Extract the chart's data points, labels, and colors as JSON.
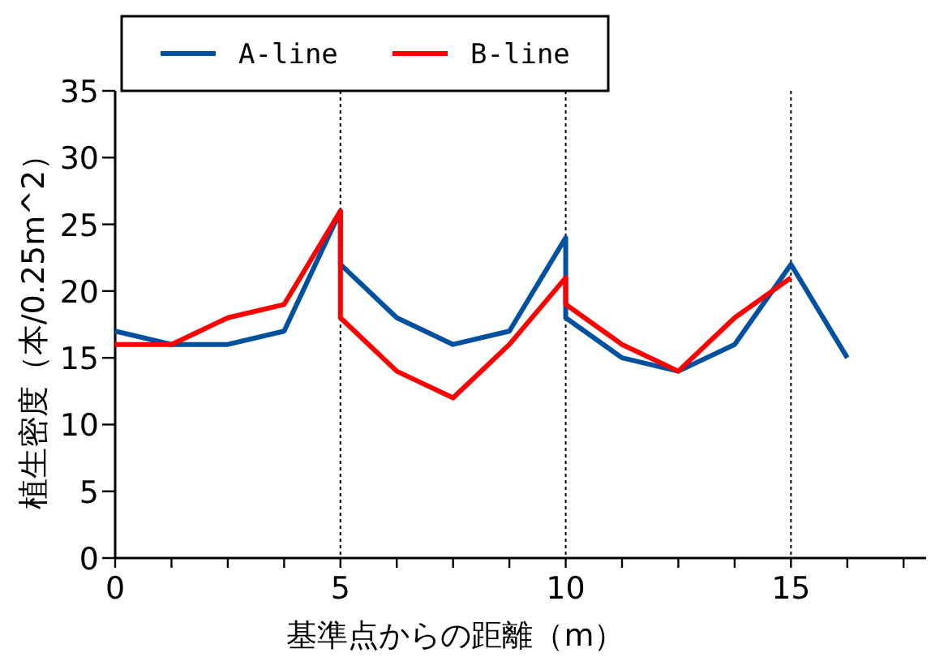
{
  "chart_data": {
    "type": "line",
    "xlabel": "基準点からの距離（m）",
    "ylabel": "植生密度（本/0.25m^2）",
    "xlim": [
      0,
      18
    ],
    "ylim": [
      0,
      35
    ],
    "xticks": [
      0,
      {
        "value": 1.25,
        "label": null
      },
      {
        "value": 2.5,
        "label": null
      },
      {
        "value": 3.75,
        "label": null
      },
      5,
      {
        "value": 6.25,
        "label": null
      },
      {
        "value": 7.5,
        "label": null
      },
      {
        "value": 8.75,
        "label": null
      },
      10,
      {
        "value": 11.25,
        "label": null
      },
      {
        "value": 12.5,
        "label": null
      },
      {
        "value": 13.75,
        "label": null
      },
      15,
      {
        "value": 16.25,
        "label": null
      },
      {
        "value": 17.5,
        "label": null
      }
    ],
    "yticks": [
      0,
      5,
      10,
      15,
      20,
      25,
      30,
      35
    ],
    "grid": false,
    "legend": "top",
    "line_style": "solid",
    "ref_lines": [
      {
        "axis": "x",
        "value": 5,
        "line_style": "dotted",
        "color": "#000000"
      },
      {
        "axis": "x",
        "value": 10,
        "line_style": "dotted",
        "color": "#000000"
      },
      {
        "axis": "x",
        "value": 15,
        "line_style": "dotted",
        "color": "#000000"
      }
    ],
    "series": [
      {
        "name": "A-line",
        "color": "#0050a0",
        "x": [
          0,
          1.25,
          2.5,
          3.75,
          5,
          5,
          6.25,
          7.5,
          8.75,
          10,
          10,
          11.25,
          12.5,
          13.75,
          15,
          16.25
        ],
        "values": [
          17,
          16,
          16,
          17,
          26,
          22,
          18,
          16,
          17,
          24,
          18,
          15,
          14,
          16,
          22,
          15
        ]
      },
      {
        "name": "B-line",
        "color": "#ff0000",
        "x": [
          0,
          1.25,
          2.5,
          3.75,
          5,
          5,
          6.25,
          7.5,
          8.75,
          10,
          10,
          11.25,
          12.5,
          13.75,
          15
        ],
        "values": [
          16,
          16,
          18,
          19,
          26,
          18,
          14,
          12,
          16,
          21,
          19,
          16,
          14,
          18,
          21
        ]
      }
    ]
  }
}
